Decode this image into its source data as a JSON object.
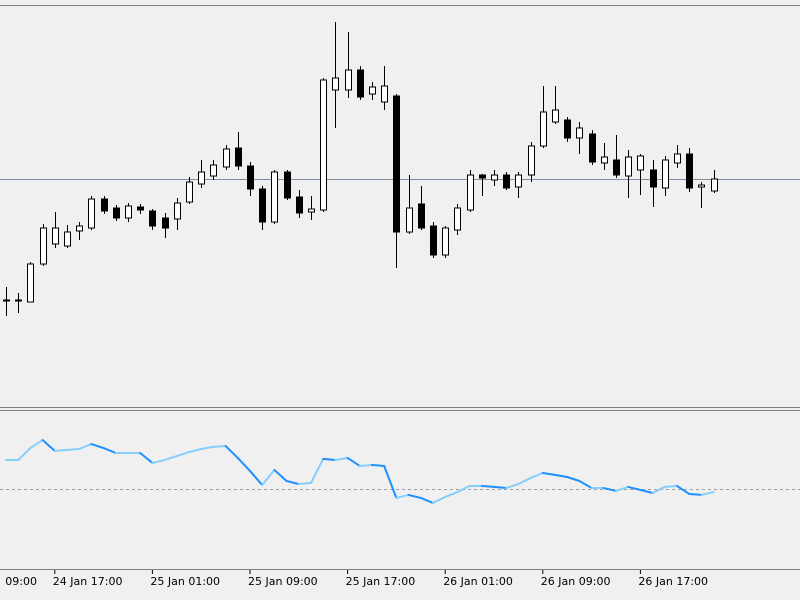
{
  "chart_data": [
    {
      "type": "candlestick",
      "categories": [
        null,
        null,
        null,
        null,
        "24 Jan 17:00",
        null,
        null,
        null,
        null,
        null,
        null,
        null,
        "25 Jan 01:00",
        null,
        null,
        null,
        null,
        null,
        null,
        null,
        "25 Jan 09:00",
        null,
        null,
        null,
        null,
        null,
        null,
        null,
        "25 Jan 17:00",
        null,
        null,
        null,
        null,
        null,
        null,
        null,
        "26 Jan 01:00",
        null,
        null,
        null,
        null,
        null,
        null,
        null,
        "26 Jan 09:00",
        null,
        null,
        null,
        null,
        null,
        null,
        null,
        "26 Jan 17:00",
        null,
        null,
        null,
        null,
        null,
        null
      ],
      "partial_label": "09:00",
      "open": [
        104,
        104,
        103,
        141,
        161,
        159,
        174,
        177,
        206,
        197,
        187,
        198,
        194,
        187,
        186,
        203,
        221,
        229,
        238,
        257,
        239,
        216,
        183,
        233,
        208,
        193,
        195,
        315,
        315,
        335,
        311,
        303,
        309,
        173,
        201,
        179,
        150,
        175,
        195,
        230,
        225,
        230,
        218,
        230,
        259,
        283,
        285,
        267,
        271,
        242,
        245,
        229,
        235,
        235,
        217,
        242,
        251,
        218,
        214
      ],
      "high": [
        118,
        112,
        143,
        181,
        193,
        180,
        183,
        209,
        209,
        200,
        202,
        201,
        196,
        192,
        207,
        228,
        245,
        245,
        260,
        273,
        243,
        219,
        235,
        235,
        215,
        209,
        327,
        383,
        373,
        339,
        323,
        339,
        311,
        230,
        219,
        183,
        179,
        201,
        235,
        231,
        235,
        233,
        233,
        263,
        319,
        319,
        288,
        283,
        275,
        262,
        270,
        255,
        251,
        245,
        249,
        260,
        257,
        223,
        235
      ],
      "low": [
        89,
        92,
        103,
        139,
        157,
        157,
        165,
        175,
        191,
        184,
        183,
        191,
        175,
        167,
        175,
        201,
        217,
        225,
        235,
        235,
        209,
        175,
        181,
        205,
        187,
        185,
        193,
        277,
        307,
        305,
        305,
        295,
        137,
        171,
        175,
        147,
        147,
        170,
        193,
        209,
        219,
        215,
        207,
        223,
        257,
        281,
        263,
        251,
        240,
        235,
        227,
        207,
        210,
        198,
        209,
        237,
        213,
        197,
        212
      ],
      "close": [
        105,
        105,
        141,
        177,
        177,
        173,
        179,
        206,
        194,
        187,
        199,
        195,
        179,
        177,
        202,
        223,
        233,
        240,
        256,
        239,
        216,
        183,
        233,
        207,
        192,
        196,
        325,
        327,
        335,
        308,
        318,
        319,
        173,
        197,
        177,
        150,
        177,
        197,
        230,
        227,
        230,
        217,
        230,
        259,
        293,
        295,
        267,
        277,
        243,
        248,
        230,
        248,
        249,
        218,
        245,
        251,
        217,
        220,
        226
      ],
      "ylim": [
        0,
        400
      ],
      "price_line": 226,
      "up_color": "#ffffff",
      "down_color": "#000000",
      "outline_color": "#000000",
      "price_line_color": "#7f8ea0"
    },
    {
      "type": "line",
      "values": [
        68.1,
        68.1,
        75.6,
        80.6,
        73.8,
        74.4,
        75,
        78.1,
        75.6,
        72.5,
        72.5,
        72.5,
        66.3,
        68.1,
        70.6,
        73.1,
        75,
        76.3,
        76.9,
        69.4,
        61.3,
        52.5,
        61.9,
        55,
        53.1,
        53.8,
        68.8,
        68.1,
        69.4,
        64.4,
        65,
        64.4,
        44.4,
        46.3,
        44.4,
        41.3,
        45,
        48.1,
        51.9,
        51.9,
        51.3,
        50.6,
        53.1,
        56.9,
        60,
        58.8,
        57.5,
        55,
        50.6,
        50.6,
        48.8,
        51.3,
        49.4,
        47.5,
        51.3,
        51.9,
        46.9,
        46.3,
        48.1
      ],
      "ylim": [
        0,
        100
      ],
      "levels": [
        50
      ],
      "rising_color": "#87cefa",
      "falling_color": "#1e90ff",
      "level_color": "#a0a0a0"
    }
  ]
}
